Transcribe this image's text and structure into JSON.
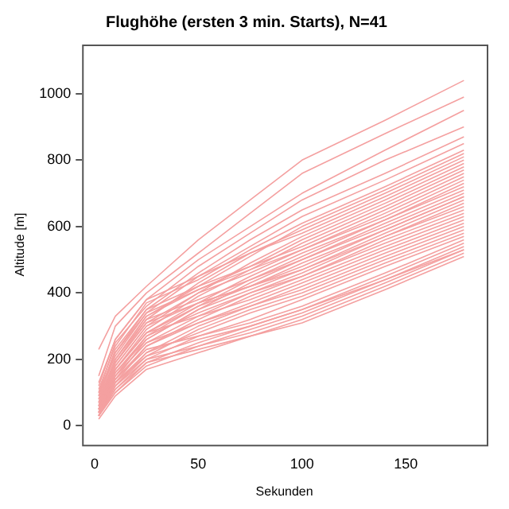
{
  "chart_data": {
    "type": "line",
    "title": "Flughöhe (ersten 3 min. Starts), N=41",
    "xlabel": "Sekunden",
    "ylabel": "Altitude [m]",
    "x": [
      2,
      10,
      25,
      50,
      75,
      100,
      140,
      178
    ],
    "xlim": [
      -6,
      189
    ],
    "xticks": [
      0,
      50,
      100,
      150
    ],
    "ylim": [
      -57,
      1148
    ],
    "yticks": [
      0,
      200,
      400,
      600,
      800,
      1000
    ],
    "grid": false,
    "legend": false,
    "marker": "none",
    "line_style": "solid",
    "series": [
      {
        "color": "#f4a0a0",
        "values": [
          230,
          330,
          420,
          560,
          680,
          800,
          920,
          1040
        ]
      },
      {
        "color": "#f4a0a0",
        "values": [
          150,
          300,
          400,
          520,
          640,
          760,
          880,
          990
        ]
      },
      {
        "color": "#f4a0a0",
        "values": [
          120,
          260,
          380,
          500,
          600,
          700,
          830,
          950
        ]
      },
      {
        "color": "#f4a0a0",
        "values": [
          100,
          250,
          360,
          480,
          580,
          680,
          800,
          900
        ]
      },
      {
        "color": "#f4a0a0",
        "values": [
          90,
          230,
          350,
          460,
          560,
          650,
          760,
          870
        ]
      },
      {
        "color": "#f4a0a0",
        "values": [
          80,
          220,
          340,
          450,
          540,
          630,
          740,
          850
        ]
      },
      {
        "color": "#f4a0a0",
        "values": [
          110,
          240,
          370,
          440,
          530,
          610,
          720,
          830
        ]
      },
      {
        "color": "#f4a0a0",
        "values": [
          70,
          200,
          330,
          420,
          510,
          600,
          710,
          820
        ]
      },
      {
        "color": "#f4a0a0",
        "values": [
          60,
          190,
          320,
          430,
          520,
          590,
          700,
          810
        ]
      },
      {
        "color": "#f4a0a0",
        "values": [
          130,
          260,
          380,
          450,
          520,
          580,
          690,
          800
        ]
      },
      {
        "color": "#f4a0a0",
        "values": [
          50,
          180,
          300,
          400,
          490,
          570,
          680,
          790
        ]
      },
      {
        "color": "#f4a0a0",
        "values": [
          90,
          210,
          340,
          410,
          480,
          560,
          670,
          780
        ]
      },
      {
        "color": "#f4a0a0",
        "values": [
          40,
          170,
          290,
          390,
          470,
          550,
          660,
          770
        ]
      },
      {
        "color": "#f4a0a0",
        "values": [
          100,
          220,
          350,
          420,
          480,
          540,
          650,
          760
        ]
      },
      {
        "color": "#f4a0a0",
        "values": [
          60,
          190,
          310,
          400,
          460,
          530,
          640,
          750
        ]
      },
      {
        "color": "#f4a0a0",
        "values": [
          70,
          200,
          330,
          410,
          470,
          530,
          630,
          740
        ]
      },
      {
        "color": "#f4a0a0",
        "values": [
          50,
          170,
          280,
          370,
          450,
          520,
          620,
          730
        ]
      },
      {
        "color": "#f4a0a0",
        "values": [
          30,
          150,
          270,
          360,
          440,
          510,
          620,
          720
        ]
      },
      {
        "color": "#f4a0a0",
        "values": [
          80,
          200,
          320,
          380,
          440,
          500,
          610,
          710
        ]
      },
      {
        "color": "#f4a0a0",
        "values": [
          40,
          160,
          260,
          350,
          430,
          500,
          600,
          700
        ]
      },
      {
        "color": "#f4a0a0",
        "values": [
          60,
          180,
          300,
          370,
          420,
          490,
          590,
          690
        ]
      },
      {
        "color": "#f4a0a0",
        "values": [
          50,
          170,
          280,
          360,
          420,
          480,
          590,
          690
        ]
      },
      {
        "color": "#f4a0a0",
        "values": [
          30,
          140,
          260,
          350,
          410,
          470,
          580,
          680
        ]
      },
      {
        "color": "#f4a0a0",
        "values": [
          70,
          190,
          310,
          370,
          420,
          470,
          570,
          670
        ]
      },
      {
        "color": "#f4a0a0",
        "values": [
          40,
          150,
          250,
          330,
          400,
          460,
          570,
          660
        ]
      },
      {
        "color": "#f4a0a0",
        "values": [
          50,
          160,
          270,
          340,
          400,
          450,
          560,
          650
        ]
      },
      {
        "color": "#f4a0a0",
        "values": [
          30,
          130,
          240,
          320,
          390,
          450,
          550,
          640
        ]
      },
      {
        "color": "#f4a0a0",
        "values": [
          60,
          170,
          280,
          330,
          380,
          440,
          540,
          630
        ]
      },
      {
        "color": "#f4a0a0",
        "values": [
          40,
          140,
          240,
          310,
          370,
          430,
          530,
          620
        ]
      },
      {
        "color": "#f4a0a0",
        "values": [
          30,
          120,
          220,
          300,
          360,
          420,
          520,
          610
        ]
      },
      {
        "color": "#f4a0a0",
        "values": [
          50,
          150,
          250,
          310,
          360,
          410,
          510,
          600
        ]
      },
      {
        "color": "#f4a0a0",
        "values": [
          30,
          120,
          210,
          290,
          350,
          400,
          500,
          590
        ]
      },
      {
        "color": "#f4a0a0",
        "values": [
          40,
          130,
          220,
          280,
          340,
          390,
          490,
          580
        ]
      },
      {
        "color": "#f4a0a0",
        "values": [
          30,
          110,
          200,
          270,
          320,
          380,
          480,
          570
        ]
      },
      {
        "color": "#f4a0a0",
        "values": [
          50,
          140,
          230,
          270,
          310,
          360,
          460,
          560
        ]
      },
      {
        "color": "#f4a0a0",
        "values": [
          30,
          100,
          190,
          250,
          300,
          350,
          450,
          550
        ]
      },
      {
        "color": "#f4a0a0",
        "values": [
          40,
          120,
          200,
          240,
          290,
          340,
          440,
          540
        ]
      },
      {
        "color": "#f4a0a0",
        "values": [
          30,
          100,
          180,
          240,
          280,
          330,
          430,
          530
        ]
      },
      {
        "color": "#f4a0a0",
        "values": [
          20,
          90,
          170,
          220,
          270,
          320,
          420,
          520
        ]
      },
      {
        "color": "#f4a0a0",
        "values": [
          30,
          110,
          190,
          230,
          270,
          310,
          410,
          510
        ]
      },
      {
        "color": "#f4a0a0",
        "values": [
          40,
          130,
          210,
          260,
          300,
          350,
          440,
          530
        ]
      }
    ]
  }
}
